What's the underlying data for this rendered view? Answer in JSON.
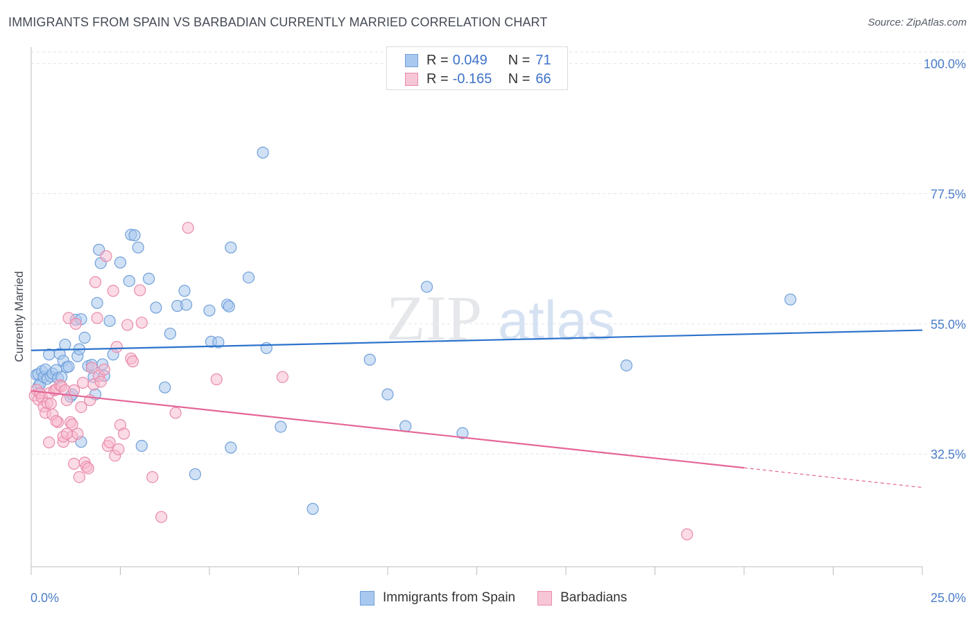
{
  "header": {
    "title": "IMMIGRANTS FROM SPAIN VS BARBADIAN CURRENTLY MARRIED CORRELATION CHART",
    "source": "Source: ZipAtlas.com"
  },
  "watermark": {
    "part1": "ZIP",
    "part2": "atlas"
  },
  "legend": {
    "rows": [
      {
        "r_label": "R =",
        "r_value": "0.049",
        "n_label": "N =",
        "n_value": "71"
      },
      {
        "r_label": "R =",
        "r_value": "-0.165",
        "n_label": "N =",
        "n_value": "66"
      }
    ]
  },
  "bottom_legend": {
    "items": [
      {
        "label": "Immigrants from Spain"
      },
      {
        "label": "Barbadians"
      }
    ]
  },
  "colors": {
    "blue_fill": "#a9c8ef",
    "blue_stroke": "#6f9fd8",
    "blue_line": "#2b72cc",
    "pink_fill": "#f7b8cc",
    "pink_stroke": "#e98aab",
    "pink_line": "#e46596",
    "grid": "#dfe2e6",
    "tick_text": "#4a7cc9"
  },
  "chart_data": {
    "type": "scatter",
    "title": "IMMIGRANTS FROM SPAIN VS BARBADIAN CURRENTLY MARRIED CORRELATION CHART",
    "xlabel": "",
    "ylabel": "Currently Married",
    "xlim": [
      0,
      25
    ],
    "ylim": [
      13,
      102
    ],
    "x_tick_labels": [
      "0.0%",
      "25.0%"
    ],
    "y_ticks": [
      32.5,
      55.0,
      77.5,
      100.0
    ],
    "y_tick_labels": [
      "32.5%",
      "55.0%",
      "77.5%",
      "100.0%"
    ],
    "grid": true,
    "legend_position": "top-center",
    "series": [
      {
        "name": "Immigrants from Spain",
        "r": 0.049,
        "n": 71,
        "trend": {
          "x": [
            0,
            25
          ],
          "y": [
            50.4,
            53.9
          ]
        },
        "points": [
          [
            0.15,
            46.2
          ],
          [
            0.2,
            44.2
          ],
          [
            0.2,
            46.3
          ],
          [
            0.25,
            44.6
          ],
          [
            0.3,
            46.8
          ],
          [
            0.35,
            45.8
          ],
          [
            0.4,
            47.1
          ],
          [
            0.45,
            45.5
          ],
          [
            0.5,
            49.7
          ],
          [
            0.55,
            45.9
          ],
          [
            0.6,
            46.4
          ],
          [
            0.7,
            47.0
          ],
          [
            0.75,
            45.6
          ],
          [
            0.8,
            49.8
          ],
          [
            0.85,
            45.8
          ],
          [
            0.9,
            48.6
          ],
          [
            0.95,
            51.4
          ],
          [
            1.0,
            47.5
          ],
          [
            1.05,
            47.6
          ],
          [
            1.1,
            42.4
          ],
          [
            1.15,
            42.8
          ],
          [
            1.25,
            55.7
          ],
          [
            1.3,
            49.4
          ],
          [
            1.35,
            50.6
          ],
          [
            1.4,
            34.6
          ],
          [
            1.4,
            55.8
          ],
          [
            1.5,
            52.6
          ],
          [
            1.6,
            47.7
          ],
          [
            1.7,
            47.9
          ],
          [
            1.75,
            45.8
          ],
          [
            1.8,
            42.8
          ],
          [
            1.85,
            58.6
          ],
          [
            1.9,
            67.8
          ],
          [
            1.95,
            65.5
          ],
          [
            2.0,
            48.0
          ],
          [
            2.05,
            46.0
          ],
          [
            2.2,
            55.5
          ],
          [
            2.3,
            49.7
          ],
          [
            2.5,
            65.6
          ],
          [
            2.75,
            62.4
          ],
          [
            2.8,
            70.4
          ],
          [
            2.9,
            70.3
          ],
          [
            3.0,
            68.2
          ],
          [
            3.1,
            33.9
          ],
          [
            3.3,
            62.8
          ],
          [
            3.5,
            57.8
          ],
          [
            3.75,
            44.0
          ],
          [
            3.9,
            53.3
          ],
          [
            4.1,
            58.1
          ],
          [
            4.3,
            60.7
          ],
          [
            4.35,
            58.3
          ],
          [
            4.6,
            29.0
          ],
          [
            5.0,
            57.3
          ],
          [
            5.05,
            51.9
          ],
          [
            5.25,
            51.8
          ],
          [
            5.5,
            58.3
          ],
          [
            5.55,
            58.0
          ],
          [
            5.6,
            33.6
          ],
          [
            5.6,
            68.2
          ],
          [
            6.1,
            63.0
          ],
          [
            6.5,
            84.6
          ],
          [
            6.6,
            50.8
          ],
          [
            7.0,
            37.2
          ],
          [
            7.9,
            23.0
          ],
          [
            9.5,
            48.8
          ],
          [
            10.0,
            42.8
          ],
          [
            10.5,
            37.3
          ],
          [
            11.1,
            61.4
          ],
          [
            12.1,
            36.1
          ],
          [
            16.7,
            47.8
          ],
          [
            21.3,
            59.2
          ]
        ]
      },
      {
        "name": "Barbadians",
        "r": -0.165,
        "n": 66,
        "trend": {
          "x": [
            0,
            20
          ],
          "y": [
            43.4,
            30.1
          ]
        },
        "trend_dashed": {
          "x": [
            20,
            25
          ],
          "y": [
            30.1,
            26.7
          ]
        },
        "points": [
          [
            0.1,
            42.6
          ],
          [
            0.15,
            43.6
          ],
          [
            0.2,
            41.9
          ],
          [
            0.25,
            43.0
          ],
          [
            0.3,
            42.3
          ],
          [
            0.35,
            40.7
          ],
          [
            0.4,
            39.6
          ],
          [
            0.45,
            41.3
          ],
          [
            0.5,
            43.0
          ],
          [
            0.5,
            34.5
          ],
          [
            0.55,
            41.2
          ],
          [
            0.6,
            39.3
          ],
          [
            0.65,
            43.5
          ],
          [
            0.7,
            43.6
          ],
          [
            0.75,
            38.0
          ],
          [
            0.8,
            44.4
          ],
          [
            0.85,
            44.2
          ],
          [
            0.9,
            34.6
          ],
          [
            0.9,
            35.5
          ],
          [
            0.95,
            43.5
          ],
          [
            1.0,
            41.8
          ],
          [
            1.05,
            56.0
          ],
          [
            1.1,
            38.0
          ],
          [
            1.15,
            37.6
          ],
          [
            1.15,
            35.5
          ],
          [
            1.2,
            30.8
          ],
          [
            1.25,
            55.0
          ],
          [
            1.3,
            36.0
          ],
          [
            1.35,
            28.5
          ],
          [
            1.4,
            40.6
          ],
          [
            1.45,
            44.8
          ],
          [
            1.5,
            31.0
          ],
          [
            1.55,
            30.3
          ],
          [
            1.6,
            30.0
          ],
          [
            1.65,
            41.8
          ],
          [
            1.7,
            47.4
          ],
          [
            1.75,
            44.5
          ],
          [
            1.8,
            62.2
          ],
          [
            1.85,
            56.0
          ],
          [
            1.9,
            46.0
          ],
          [
            1.95,
            45.0
          ],
          [
            2.05,
            47.1
          ],
          [
            2.1,
            66.7
          ],
          [
            2.15,
            33.9
          ],
          [
            2.2,
            34.5
          ],
          [
            2.3,
            60.7
          ],
          [
            2.35,
            32.2
          ],
          [
            2.4,
            51.0
          ],
          [
            2.45,
            33.3
          ],
          [
            2.5,
            37.5
          ],
          [
            2.6,
            36.0
          ],
          [
            2.7,
            54.8
          ],
          [
            2.8,
            49.0
          ],
          [
            2.85,
            48.5
          ],
          [
            3.05,
            60.8
          ],
          [
            3.1,
            55.2
          ],
          [
            3.4,
            28.5
          ],
          [
            3.65,
            21.6
          ],
          [
            4.05,
            39.6
          ],
          [
            4.4,
            71.6
          ],
          [
            5.2,
            45.4
          ],
          [
            7.05,
            45.8
          ],
          [
            18.4,
            18.6
          ],
          [
            1.0,
            36.0
          ],
          [
            0.7,
            38.2
          ],
          [
            1.2,
            43.5
          ]
        ]
      }
    ]
  }
}
